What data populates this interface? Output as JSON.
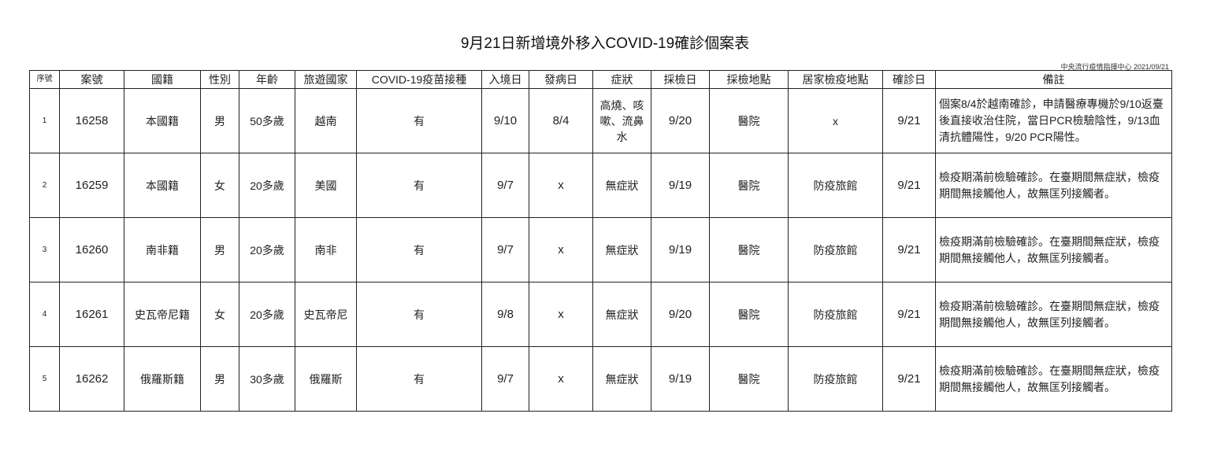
{
  "title": "9月21日新增境外移入COVID-19確診個案表",
  "source": "中央流行疫情指揮中心 2021/09/21",
  "columns": [
    "序號",
    "案號",
    "國籍",
    "性別",
    "年齡",
    "旅遊國家",
    "COVID-19疫苗接種",
    "入境日",
    "發病日",
    "症狀",
    "採檢日",
    "採檢地點",
    "居家檢疫地點",
    "確診日",
    "備註"
  ],
  "rows": [
    [
      "1",
      "16258",
      "本國籍",
      "男",
      "50多歲",
      "越南",
      "有",
      "9/10",
      "8/4",
      "高燒、咳嗽、流鼻水",
      "9/20",
      "醫院",
      "x",
      "9/21",
      "個案8/4於越南確診，申請醫療專機於9/10返臺後直接收治住院，當日PCR檢驗陰性，9/13血清抗體陽性，9/20 PCR陽性。"
    ],
    [
      "2",
      "16259",
      "本國籍",
      "女",
      "20多歲",
      "美國",
      "有",
      "9/7",
      "x",
      "無症狀",
      "9/19",
      "醫院",
      "防疫旅館",
      "9/21",
      "檢疫期滿前檢驗確診。在臺期間無症狀，檢疫期間無接觸他人，故無匡列接觸者。"
    ],
    [
      "3",
      "16260",
      "南非籍",
      "男",
      "20多歲",
      "南非",
      "有",
      "9/7",
      "x",
      "無症狀",
      "9/19",
      "醫院",
      "防疫旅館",
      "9/21",
      "檢疫期滿前檢驗確診。在臺期間無症狀，檢疫期間無接觸他人，故無匡列接觸者。"
    ],
    [
      "4",
      "16261",
      "史瓦帝尼籍",
      "女",
      "20多歲",
      "史瓦帝尼",
      "有",
      "9/8",
      "x",
      "無症狀",
      "9/20",
      "醫院",
      "防疫旅館",
      "9/21",
      "檢疫期滿前檢驗確診。在臺期間無症狀，檢疫期間無接觸他人，故無匡列接觸者。"
    ],
    [
      "5",
      "16262",
      "俄羅斯籍",
      "男",
      "30多歲",
      "俄羅斯",
      "有",
      "9/7",
      "x",
      "無症狀",
      "9/19",
      "醫院",
      "防疫旅館",
      "9/21",
      "檢疫期滿前檢驗確診。在臺期間無症狀，檢疫期間無接觸他人，故無匡列接觸者。"
    ]
  ]
}
